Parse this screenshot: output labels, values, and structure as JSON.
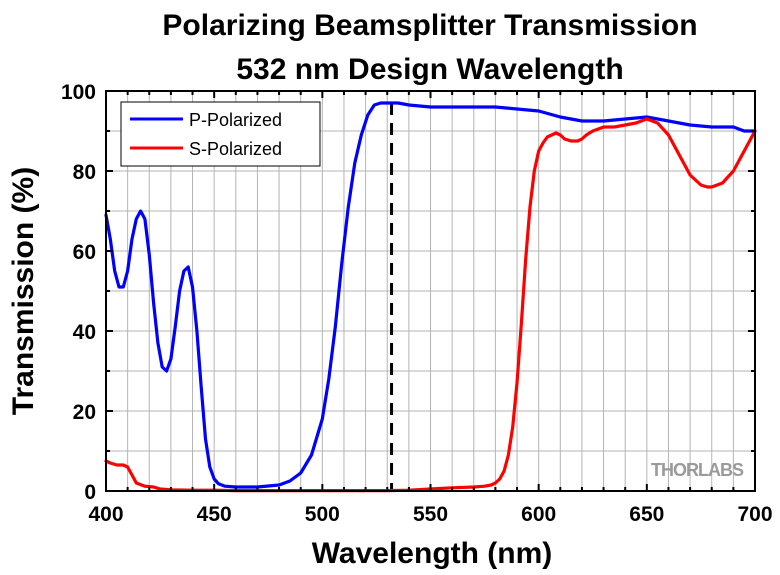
{
  "chart_data": {
    "type": "line",
    "title": "Polarizing Beamsplitter Transmission",
    "subtitle": "532 nm Design Wavelength",
    "xlabel": "Wavelength (nm)",
    "ylabel": "Transmission (%)",
    "xlim": [
      400,
      700
    ],
    "ylim": [
      0,
      100
    ],
    "xticks": [
      400,
      450,
      500,
      550,
      600,
      650,
      700
    ],
    "yticks": [
      0,
      20,
      40,
      60,
      80,
      100
    ],
    "xtick_labels": [
      "400",
      "450",
      "500",
      "550",
      "600",
      "650",
      "700"
    ],
    "ytick_labels": [
      "0",
      "20",
      "40",
      "60",
      "80",
      "100"
    ],
    "grid": true,
    "legend_position": "top-left",
    "design_wavelength": 532,
    "watermark": "THORLABS",
    "series": [
      {
        "name": "P-Polarized",
        "color": "#0000ff",
        "x": [
          400,
          402,
          404,
          406,
          408,
          410,
          412,
          414,
          416,
          418,
          420,
          422,
          424,
          426,
          428,
          430,
          432,
          434,
          436,
          438,
          440,
          442,
          444,
          446,
          448,
          450,
          452,
          455,
          460,
          470,
          480,
          485,
          490,
          495,
          500,
          503,
          506,
          509,
          512,
          515,
          518,
          521,
          524,
          527,
          530,
          532,
          535,
          540,
          550,
          560,
          570,
          580,
          590,
          600,
          610,
          620,
          630,
          640,
          650,
          660,
          670,
          680,
          690,
          695,
          700
        ],
        "y": [
          69,
          63,
          55,
          51,
          51,
          55,
          63,
          68,
          70,
          68,
          59,
          47,
          37,
          31,
          30,
          33,
          41,
          50,
          55,
          56,
          51,
          40,
          26,
          13,
          6,
          3,
          1.8,
          1.2,
          1,
          1,
          1.5,
          2.5,
          4.5,
          9,
          18,
          28,
          41,
          57,
          71,
          82,
          89,
          94,
          96.5,
          97,
          97,
          97,
          97,
          96.5,
          96,
          96,
          96,
          96,
          95.5,
          95,
          93.5,
          92.5,
          92.5,
          93,
          93.5,
          92.5,
          91.5,
          91,
          91,
          90,
          90
        ]
      },
      {
        "name": "S-Polarized",
        "color": "#ff0000",
        "x": [
          400,
          402,
          405,
          408,
          410,
          412,
          414,
          418,
          422,
          425,
          430,
          440,
          450,
          460,
          470,
          480,
          490,
          500,
          510,
          520,
          530,
          540,
          550,
          560,
          570,
          575,
          578,
          580,
          582,
          584,
          586,
          588,
          590,
          592,
          594,
          596,
          598,
          600,
          602,
          604,
          606,
          608,
          610,
          612,
          615,
          618,
          620,
          622,
          625,
          630,
          635,
          640,
          645,
          650,
          655,
          660,
          665,
          670,
          675,
          678,
          680,
          685,
          690,
          695,
          700
        ],
        "y": [
          7.5,
          7,
          6.5,
          6.5,
          6,
          4,
          2,
          1.2,
          1,
          0.5,
          0.3,
          0.2,
          0.2,
          0.1,
          0.1,
          0.1,
          0.1,
          0.1,
          0.1,
          0.1,
          0.1,
          0.2,
          0.5,
          0.8,
          1,
          1.2,
          1.5,
          2,
          3,
          5,
          9,
          16,
          27,
          42,
          58,
          71,
          80,
          85,
          87,
          88.5,
          89,
          89.5,
          89,
          88,
          87.5,
          87.5,
          88,
          89,
          90,
          91,
          91,
          91.5,
          92,
          93,
          92,
          89,
          84,
          79,
          76.5,
          76,
          76,
          77,
          80,
          85,
          90
        ]
      }
    ]
  }
}
